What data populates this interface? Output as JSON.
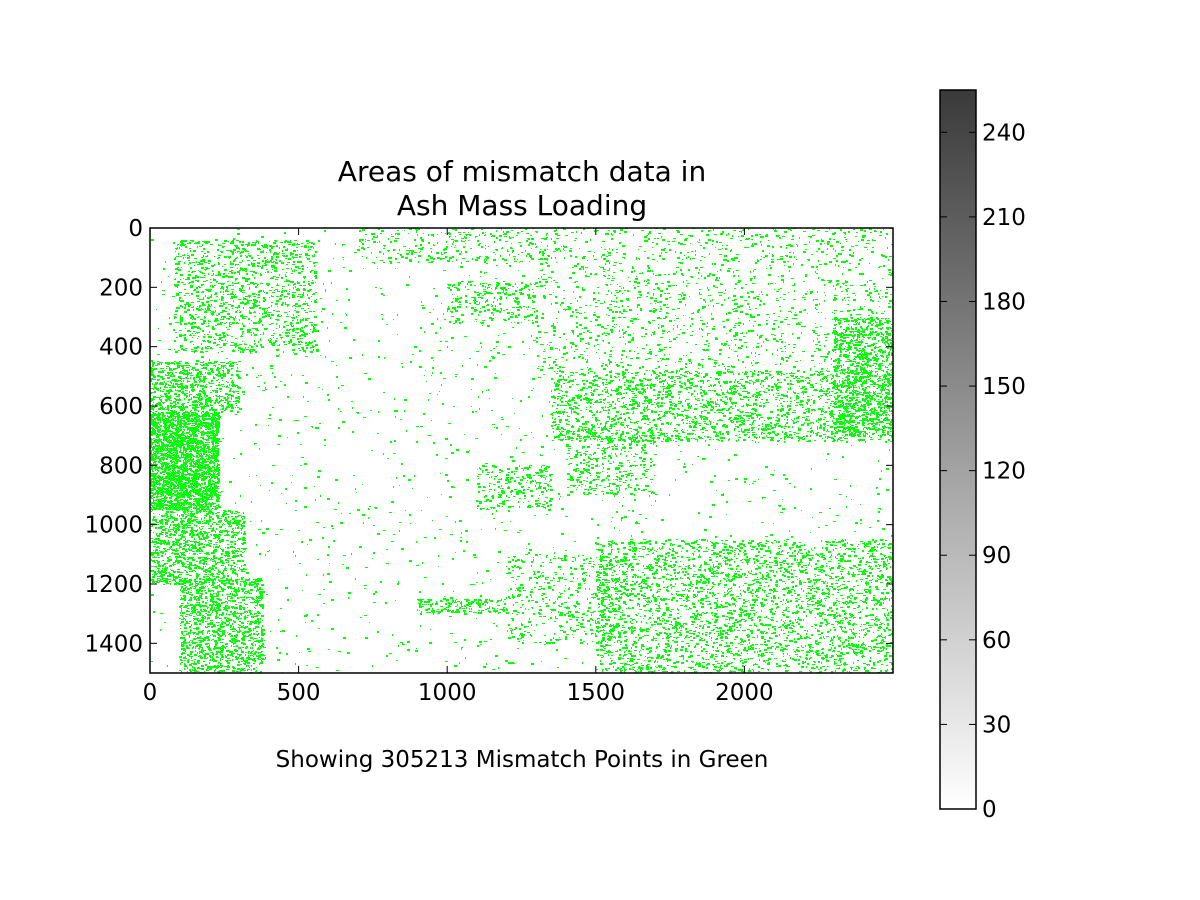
{
  "chart_data": {
    "type": "heatmap",
    "title_lines": [
      "Areas of mismatch data in",
      "Ash Mass Loading"
    ],
    "xlabel": "Showing 305213 Mismatch Points in Green",
    "ylabel": "",
    "xlim": [
      0,
      2500
    ],
    "ylim": [
      1500,
      0
    ],
    "x_ticks": [
      0,
      500,
      1000,
      1500,
      2000
    ],
    "y_ticks": [
      0,
      200,
      400,
      600,
      800,
      1000,
      1200,
      1400
    ],
    "mismatch_count": 305213,
    "mismatch_color": "#00ff00",
    "background_color": "#ffffff",
    "colorbar": {
      "cmap": "greys",
      "range": [
        0,
        255
      ],
      "ticks": [
        0,
        30,
        60,
        90,
        120,
        150,
        180,
        210,
        240
      ],
      "color_low": "#ffffff",
      "color_high": "#3a3a3a"
    },
    "grid": false,
    "legend": "none",
    "mismatch_regions": [
      {
        "x": [
          0,
          230
        ],
        "y": [
          620,
          950
        ],
        "density": 0.85
      },
      {
        "x": [
          0,
          320
        ],
        "y": [
          950,
          1200
        ],
        "density": 0.35
      },
      {
        "x": [
          0,
          300
        ],
        "y": [
          450,
          620
        ],
        "density": 0.35
      },
      {
        "x": [
          80,
          560
        ],
        "y": [
          40,
          420
        ],
        "density": 0.18
      },
      {
        "x": [
          100,
          380
        ],
        "y": [
          1180,
          1500
        ],
        "density": 0.35
      },
      {
        "x": [
          700,
          1300
        ],
        "y": [
          0,
          120
        ],
        "density": 0.1
      },
      {
        "x": [
          1000,
          1300
        ],
        "y": [
          180,
          320
        ],
        "density": 0.15
      },
      {
        "x": [
          1350,
          2500
        ],
        "y": [
          480,
          720
        ],
        "density": 0.2
      },
      {
        "x": [
          1400,
          1700
        ],
        "y": [
          700,
          900
        ],
        "density": 0.15
      },
      {
        "x": [
          1100,
          1350
        ],
        "y": [
          800,
          950
        ],
        "density": 0.15
      },
      {
        "x": [
          1500,
          2500
        ],
        "y": [
          1050,
          1500
        ],
        "density": 0.18
      },
      {
        "x": [
          2300,
          2500
        ],
        "y": [
          300,
          700
        ],
        "density": 0.3
      },
      {
        "x": [
          1300,
          2500
        ],
        "y": [
          0,
          480
        ],
        "density": 0.06
      },
      {
        "x": [
          0,
          2500
        ],
        "y": [
          0,
          1500
        ],
        "density": 0.012
      },
      {
        "x": [
          900,
          1200
        ],
        "y": [
          1250,
          1300
        ],
        "density": 0.3
      },
      {
        "x": [
          1200,
          1600
        ],
        "y": [
          1100,
          1400
        ],
        "density": 0.1
      }
    ]
  }
}
